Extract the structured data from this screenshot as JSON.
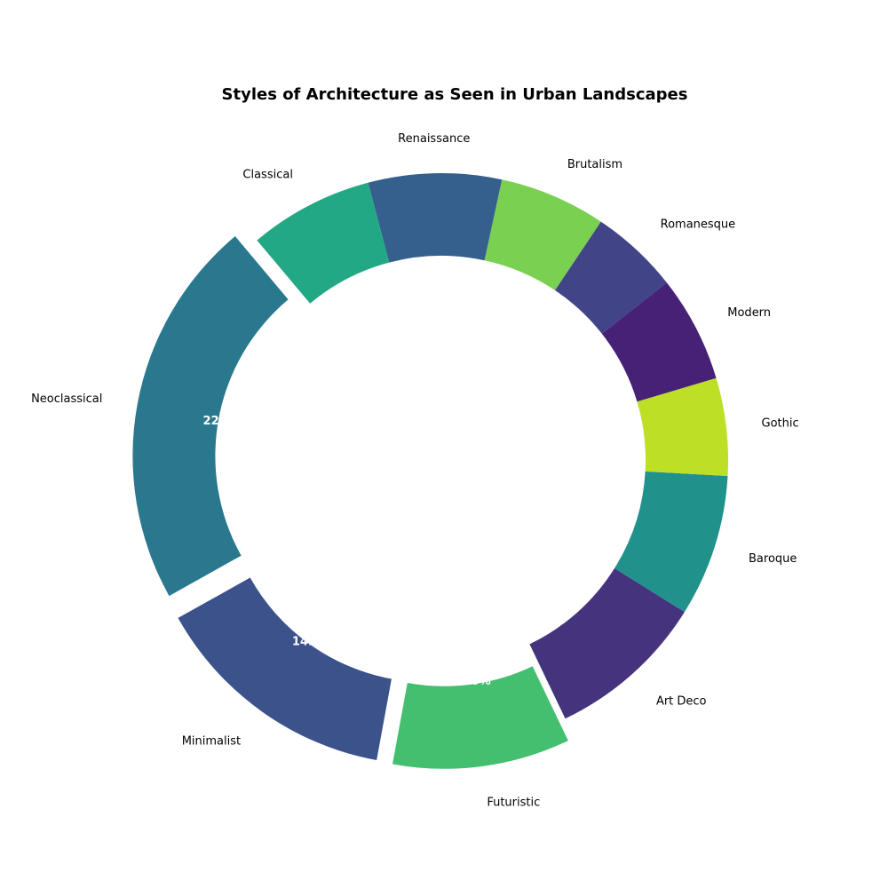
{
  "chart_data": {
    "type": "pie",
    "variant": "donut",
    "title": "Styles of Architecture as Seen in Urban Landscapes",
    "start_angle_deg": 130,
    "direction": "counterclockwise",
    "slices": [
      {
        "label": "Neoclassical",
        "value": 22.0,
        "pct_text": "22.0%",
        "color": "#2a788e",
        "explode": true
      },
      {
        "label": "Minimalist",
        "value": 14.0,
        "pct_text": "14.0%",
        "color": "#3b528b",
        "explode": true
      },
      {
        "label": "Futuristic",
        "value": 10.0,
        "pct_text": "10.0%",
        "color": "#44bf70",
        "explode": true
      },
      {
        "label": "Art Deco",
        "value": 9.0,
        "pct_text": "",
        "color": "#46337e",
        "explode": false
      },
      {
        "label": "Baroque",
        "value": 8.0,
        "pct_text": "",
        "color": "#21918c",
        "explode": false
      },
      {
        "label": "Gothic",
        "value": 5.5,
        "pct_text": "",
        "color": "#bddf26",
        "explode": false
      },
      {
        "label": "Modern",
        "value": 6.0,
        "pct_text": "",
        "color": "#472175",
        "explode": false
      },
      {
        "label": "Romanesque",
        "value": 5.0,
        "pct_text": "",
        "color": "#414487",
        "explode": false
      },
      {
        "label": "Brutalism",
        "value": 6.0,
        "pct_text": "",
        "color": "#7ad151",
        "explode": false
      },
      {
        "label": "Renaissance",
        "value": 7.5,
        "pct_text": "",
        "color": "#355f8d",
        "explode": false
      },
      {
        "label": "Classical",
        "value": 7.0,
        "pct_text": "",
        "color": "#22a884",
        "explode": false
      }
    ]
  }
}
